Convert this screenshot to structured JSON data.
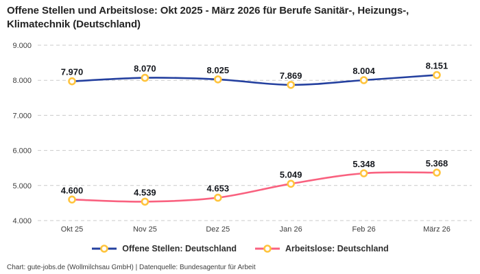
{
  "title": "Offene Stellen und Arbeitslose: Okt 2025 - März 2026 für Berufe Sanitär-, Heizungs-, Klimatechnik (Deutschland)",
  "footer": "Chart: gute-jobs.de (Wollmilchsau GmbH) | Datenquelle: Bundesagentur für Arbeit",
  "colors": {
    "offene_stellen": "#24409f",
    "arbeitslose": "#f9617f",
    "marker_stroke": "#ffc43d",
    "marker_fill": "#ffffff",
    "gridline": "#c9c9c9",
    "axis_text": "#3c3c3c",
    "data_label": "#15181e"
  },
  "chart_data": {
    "type": "line",
    "title": "Offene Stellen und Arbeitslose: Okt 2025 - März 2026 für Berufe Sanitär-, Heizungs-, Klimatechnik (Deutschland)",
    "categories": [
      "Okt 25",
      "Nov 25",
      "Dez 25",
      "Jan 26",
      "Feb 26",
      "März 26"
    ],
    "series": [
      {
        "name": "Offene Stellen: Deutschland",
        "values": [
          7970,
          8070,
          8025,
          7869,
          8004,
          8151
        ],
        "labels": [
          "7.970",
          "8.070",
          "8.025",
          "7.869",
          "8.004",
          "8.151"
        ],
        "color_key": "offene_stellen"
      },
      {
        "name": "Arbeitslose: Deutschland",
        "values": [
          4600,
          4539,
          4653,
          5049,
          5348,
          5368
        ],
        "labels": [
          "4.600",
          "4.539",
          "4.653",
          "5.049",
          "5.348",
          "5.368"
        ],
        "color_key": "arbeitslose"
      }
    ],
    "y_ticks": [
      4000,
      5000,
      6000,
      7000,
      8000,
      9000
    ],
    "y_tick_labels": [
      "4.000",
      "5.000",
      "6.000",
      "7.000",
      "8.000",
      "9.000"
    ],
    "ylim": [
      4000,
      9000
    ],
    "xlabel": "",
    "ylabel": "",
    "grid": "dashed-horizontal",
    "legend_position": "bottom"
  },
  "legend": {
    "items": [
      {
        "label": "Offene Stellen: Deutschland",
        "color_key": "offene_stellen"
      },
      {
        "label": "Arbeitslose: Deutschland",
        "color_key": "arbeitslose"
      }
    ]
  }
}
